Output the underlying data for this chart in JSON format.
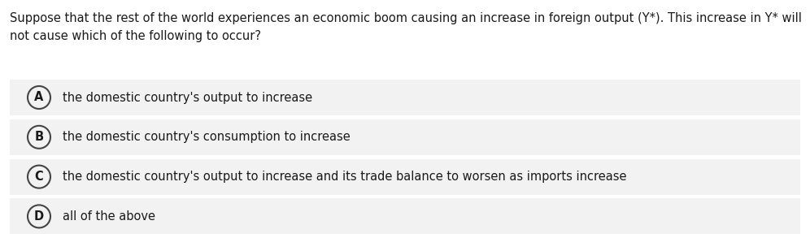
{
  "question_line1": "Suppose that the rest of the world experiences an economic boom causing an increase in foreign output (Y*). This increase in Y* will",
  "question_line2": "not cause which of the following to occur?",
  "options": [
    {
      "label": "A",
      "text": "the domestic country's output to increase"
    },
    {
      "label": "B",
      "text": "the domestic country's consumption to increase"
    },
    {
      "label": "C",
      "text": "the domestic country's output to increase and its trade balance to worsen as imports increase"
    },
    {
      "label": "D",
      "text": "all of the above"
    }
  ],
  "bg_color": "#ffffff",
  "option_bg_color": "#f2f2f2",
  "text_color": "#1a1a1a",
  "circle_edgecolor": "#444444",
  "question_fontsize": 10.5,
  "option_fontsize": 10.5,
  "label_fontsize": 10.5
}
